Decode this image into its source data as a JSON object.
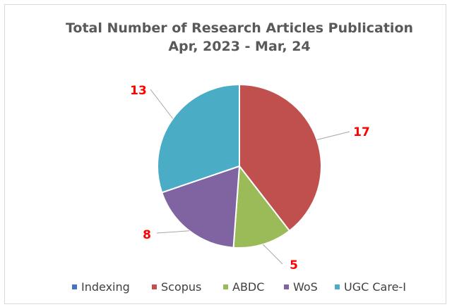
{
  "chart_data": {
    "type": "pie",
    "title": "Total Number of Research Articles Publication",
    "subtitle": "Apr, 2023 - Mar, 24",
    "categories": [
      "Indexing",
      "Scopus",
      "ABDC",
      "WoS",
      "UGC Care-I"
    ],
    "values": [
      0,
      17,
      5,
      8,
      13
    ],
    "colors": [
      "#4472c4",
      "#c0504d",
      "#9bbb59",
      "#8064a2",
      "#4bacc6"
    ],
    "data_labels": [
      "",
      "17",
      "5",
      "8",
      "13"
    ],
    "label_color": "#ff0000",
    "legend_position": "bottom",
    "start_angle": "top, clockwise"
  }
}
